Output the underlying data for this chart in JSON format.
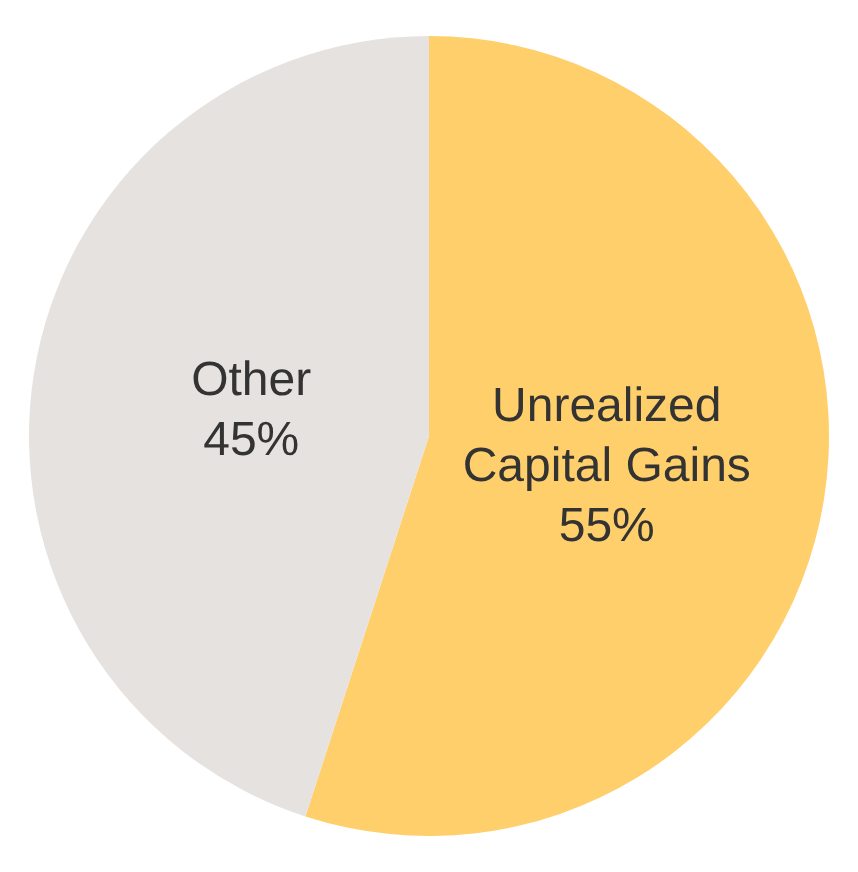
{
  "chart_data": {
    "type": "pie",
    "categories": [
      "Unrealized Capital Gains",
      "Other"
    ],
    "values": [
      55,
      45
    ],
    "colors": [
      "#ffcf6b",
      "#e6e2df"
    ],
    "value_labels": [
      "55%",
      "45%"
    ]
  }
}
